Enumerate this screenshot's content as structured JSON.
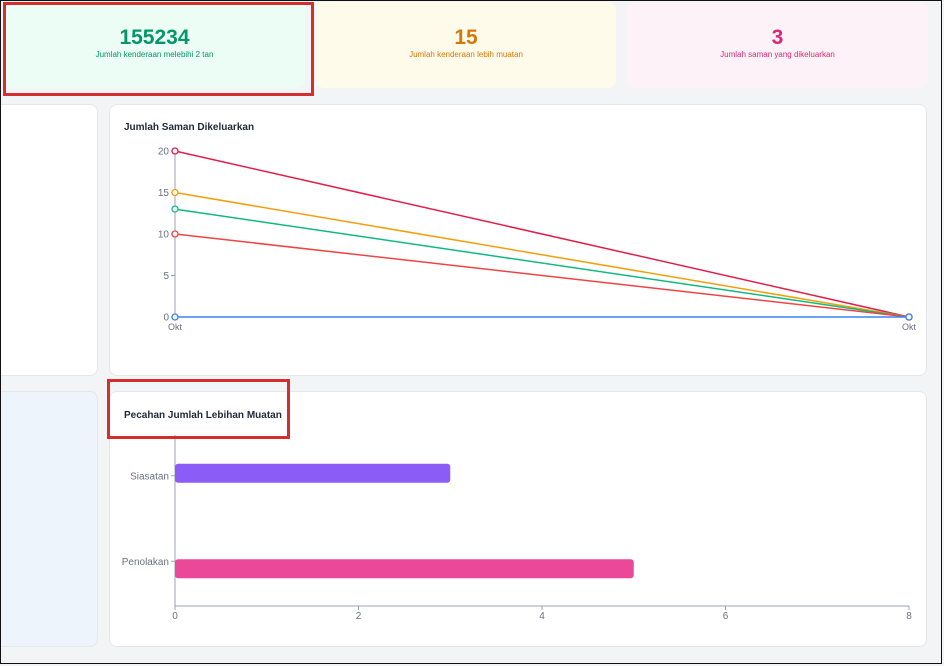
{
  "stats": [
    {
      "value": "155234",
      "label": "Jumlah kenderaan melebihi 2 tan",
      "color": "#059669",
      "bg": "#ecfdf5"
    },
    {
      "value": "15",
      "label": "Jumlah kenderaan lebih muatan",
      "color": "#d97706",
      "bg": "#fefbeb"
    },
    {
      "value": "3",
      "label": "Jumlah saman yang dikeluarkan",
      "color": "#db2777",
      "bg": "#fdf2f8"
    }
  ],
  "line_panel": {
    "title": "Jumlah Saman Dikeluarkan"
  },
  "bar_panel": {
    "title": "Pecahan Jumlah Lebihan Muatan"
  },
  "chart_data": [
    {
      "type": "line",
      "title": "Jumlah Saman Dikeluarkan",
      "x": [
        "Okt",
        "Okt"
      ],
      "ylim": [
        0,
        20
      ],
      "yticks": [
        0,
        5,
        10,
        15,
        20
      ],
      "series": [
        {
          "values": [
            20,
            0
          ],
          "color": "#e11d48"
        },
        {
          "values": [
            15,
            0
          ],
          "color": "#f59e0b"
        },
        {
          "values": [
            13,
            0
          ],
          "color": "#10b981"
        },
        {
          "values": [
            10,
            0
          ],
          "color": "#ef4444"
        },
        {
          "values": [
            0,
            0
          ],
          "color": "#3b82f6"
        }
      ],
      "grid": false
    },
    {
      "type": "bar",
      "orientation": "horizontal",
      "title": "Pecahan Jumlah Lebihan Muatan",
      "categories": [
        "Siasatan",
        "Penolakan"
      ],
      "values": [
        3,
        5
      ],
      "colors": [
        "#8b5cf6",
        "#ec4899"
      ],
      "xlim": [
        0,
        8
      ],
      "xticks": [
        0,
        2,
        4,
        6,
        8
      ],
      "grid": false
    }
  ]
}
